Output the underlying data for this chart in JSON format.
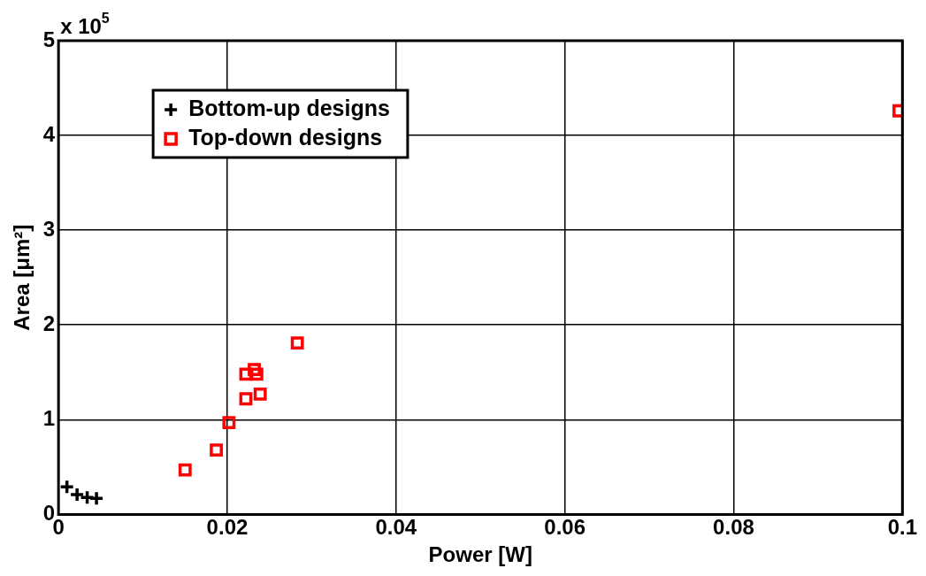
{
  "chart_data": {
    "type": "scatter",
    "xlabel": "Power [W]",
    "ylabel": "Area [μm²]",
    "annotations": [
      "x 10$^{5}$"
    ],
    "xlim": [
      0,
      0.1
    ],
    "xticks": [
      0,
      0.02,
      0.04,
      0.06,
      0.08,
      0.1
    ],
    "ylim": [
      0,
      5
    ],
    "yticks": [
      0,
      1,
      2,
      3,
      4,
      5
    ],
    "grid": true,
    "legend": "top left",
    "series": [
      {
        "name": "Bottom-up designs",
        "color": "#000000",
        "marker": "cross",
        "x": [
          0.001,
          0.0022,
          0.0034,
          0.0045
        ],
        "values": [
          0.29,
          0.21,
          0.18,
          0.17
        ]
      },
      {
        "name": "Top-down designs",
        "color": "#ff0000",
        "marker": "square",
        "x": [
          0.015,
          0.0187,
          0.0202,
          0.0222,
          0.0239,
          0.0222,
          0.0232,
          0.0235,
          0.0283,
          0.0996
        ],
        "values": [
          0.47,
          0.68,
          0.97,
          1.22,
          1.27,
          1.48,
          1.53,
          1.48,
          1.81,
          4.26
        ]
      }
    ]
  }
}
